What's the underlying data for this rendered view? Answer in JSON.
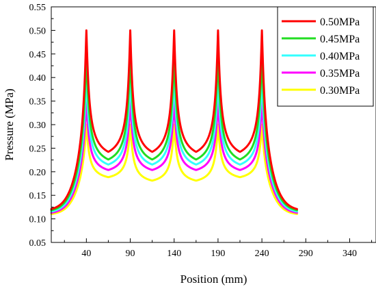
{
  "chart_data": {
    "type": "line",
    "title": "",
    "xlabel": "Position (mm)",
    "ylabel": "Pressure (MPa)",
    "xlim": [
      0,
      370
    ],
    "ylim": [
      0.05,
      0.55
    ],
    "x_ticks": [
      40,
      90,
      140,
      190,
      240,
      290,
      340
    ],
    "y_ticks": [
      0.05,
      0.1,
      0.15,
      0.2,
      0.25,
      0.3,
      0.35,
      0.4,
      0.45,
      0.5,
      0.55
    ],
    "x_tick_labels": [
      "40",
      "90",
      "140",
      "190",
      "240",
      "290",
      "340"
    ],
    "y_tick_labels": [
      "0.05",
      "0.10",
      "0.15",
      "0.20",
      "0.25",
      "0.30",
      "0.35",
      "0.40",
      "0.45",
      "0.50",
      "0.55"
    ],
    "grid": false,
    "legend_position": "top-right",
    "peaks_x": [
      40,
      90,
      140,
      190,
      240
    ],
    "x_range": [
      0,
      280
    ],
    "series": [
      {
        "name": "0.50MPa",
        "color": "#ff0000",
        "end_value": 0.1,
        "peak_values": [
          0.5,
          0.5,
          0.5,
          0.5,
          0.5
        ],
        "trough_values": [
          0.218,
          0.218,
          0.218,
          0.218
        ]
      },
      {
        "name": "0.45MPa",
        "color": "#22dd22",
        "end_value": 0.1,
        "peak_values": [
          0.45,
          0.45,
          0.45,
          0.45,
          0.45
        ],
        "trough_values": [
          0.205,
          0.205,
          0.205,
          0.205
        ]
      },
      {
        "name": "0.40MPa",
        "color": "#33ffff",
        "end_value": 0.1,
        "peak_values": [
          0.4,
          0.4,
          0.4,
          0.4,
          0.4
        ],
        "trough_values": [
          0.198,
          0.198,
          0.198,
          0.198
        ]
      },
      {
        "name": "0.35MPa",
        "color": "#ff00ff",
        "end_value": 0.1,
        "peak_values": [
          0.35,
          0.35,
          0.35,
          0.35,
          0.35
        ],
        "trough_values": [
          0.19,
          0.19,
          0.19,
          0.19
        ]
      },
      {
        "name": "0.30MPa",
        "color": "#ffff00",
        "end_value": 0.1,
        "peak_values": [
          0.3,
          0.3,
          0.3,
          0.3,
          0.3
        ],
        "trough_values": [
          0.178,
          0.17,
          0.17,
          0.178
        ]
      }
    ]
  }
}
